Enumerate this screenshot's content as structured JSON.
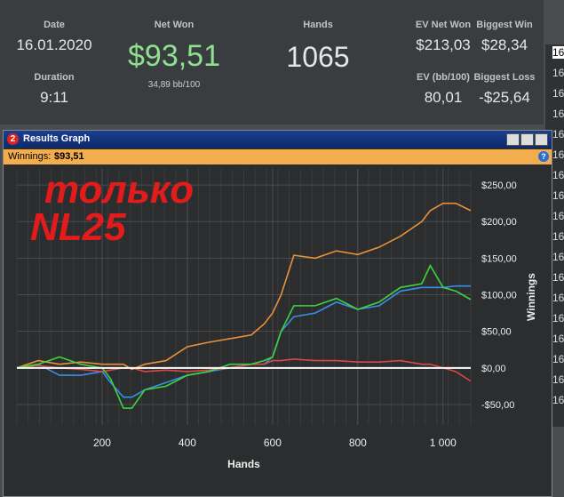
{
  "header": {
    "stats": [
      {
        "label": "Date",
        "value": "16.01.2020"
      },
      {
        "label": "Duration",
        "value": "9:11"
      },
      {
        "label": "Net Won",
        "value": "$93,51",
        "sub": "34,89 bb/100"
      },
      {
        "label": "Hands",
        "value": "1065"
      },
      {
        "label": "EV Net Won",
        "value": "$213,03"
      },
      {
        "label": "Biggest Win",
        "value": "$28,34"
      },
      {
        "label": "EV (bb/100)",
        "value": "80,01"
      },
      {
        "label": "Biggest Loss",
        "value": "-$25,64"
      }
    ]
  },
  "side_column": [
    "16",
    "16",
    "16",
    "16",
    "16",
    "16",
    "16",
    "16",
    "16",
    "16",
    "16",
    "16",
    "16",
    "16",
    "16",
    "16",
    "16",
    "16"
  ],
  "window": {
    "badge": "2",
    "title": "Results Graph",
    "winnings_label": "Winnings:",
    "winnings_value": "$93,51",
    "help": "?"
  },
  "chart_data": {
    "type": "line",
    "annotation": [
      "только",
      "NL25"
    ],
    "xlabel": "Hands",
    "ylabel": "Winnings",
    "x": [
      0,
      50,
      100,
      150,
      200,
      220,
      250,
      270,
      300,
      350,
      400,
      450,
      500,
      550,
      580,
      600,
      620,
      650,
      700,
      750,
      800,
      850,
      900,
      950,
      970,
      1000,
      1030,
      1065
    ],
    "series": [
      {
        "color": "#e8913a",
        "values": [
          0,
          10,
          5,
          8,
          5,
          5,
          5,
          -2,
          5,
          10,
          29,
          35,
          40,
          45,
          60,
          75,
          100,
          154,
          150,
          160,
          155,
          165,
          180,
          200,
          215,
          225,
          225,
          215
        ]
      },
      {
        "color": "#3a8ee8",
        "values": [
          0,
          5,
          -10,
          -10,
          -5,
          -20,
          -40,
          -40,
          -30,
          -20,
          -10,
          -5,
          0,
          5,
          5,
          15,
          50,
          70,
          75,
          90,
          80,
          85,
          105,
          110,
          110,
          110,
          112,
          112
        ]
      },
      {
        "color": "#d94848",
        "values": [
          0,
          3,
          0,
          -2,
          -5,
          -3,
          0,
          0,
          -5,
          -3,
          -5,
          -3,
          0,
          5,
          5,
          10,
          10,
          12,
          10,
          10,
          8,
          8,
          10,
          5,
          5,
          0,
          -5,
          -18
        ]
      },
      {
        "color": "#3ed43e",
        "values": [
          0,
          5,
          15,
          5,
          0,
          -15,
          -55,
          -55,
          -30,
          -25,
          -10,
          -5,
          5,
          5,
          10,
          15,
          50,
          85,
          85,
          95,
          80,
          90,
          110,
          115,
          140,
          110,
          105,
          93.51
        ]
      }
    ],
    "xlim": [
      0,
      1065
    ],
    "xticks": [
      200,
      400,
      600,
      800,
      {
        "value": 1000,
        "label": "1 000"
      }
    ],
    "ylim": [
      -78,
      272
    ],
    "yticks": [
      {
        "value": -50,
        "label": "-$50,00"
      },
      {
        "value": 0,
        "label": "$0,00"
      },
      {
        "value": 50,
        "label": "$50,00"
      },
      {
        "value": 100,
        "label": "$100,00"
      },
      {
        "value": 150,
        "label": "$150,00"
      },
      {
        "value": 200,
        "label": "$200,00"
      },
      {
        "value": 250,
        "label": "$250,00"
      }
    ],
    "grid": true
  }
}
